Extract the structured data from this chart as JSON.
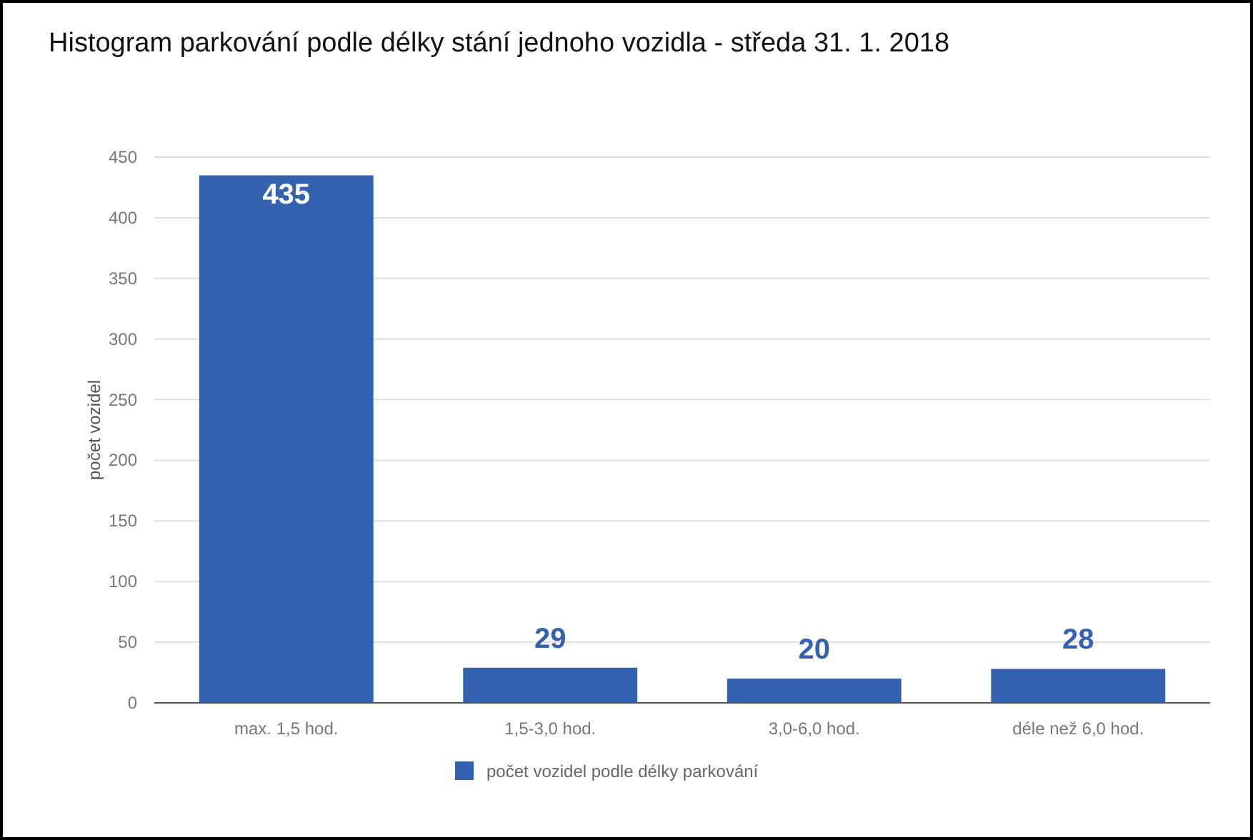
{
  "chart_data": {
    "type": "bar",
    "title": "Histogram parkování podle délky stání jednoho vozidla - středa 31. 1. 2018",
    "ylabel": "počet vozidel",
    "categories": [
      "max. 1,5 hod.",
      "1,5-3,0 hod.",
      "3,0-6,0 hod.",
      "déle než 6,0 hod."
    ],
    "series": [
      {
        "name": "počet vozidel podle délky parkování",
        "color": "#3461b0",
        "values": [
          435,
          29,
          20,
          28
        ]
      }
    ],
    "ylim": [
      0,
      450
    ],
    "yticks": [
      0,
      50,
      100,
      150,
      200,
      250,
      300,
      350,
      400,
      450
    ],
    "grid": "y",
    "legend": "bottom",
    "data_labels": true
  }
}
